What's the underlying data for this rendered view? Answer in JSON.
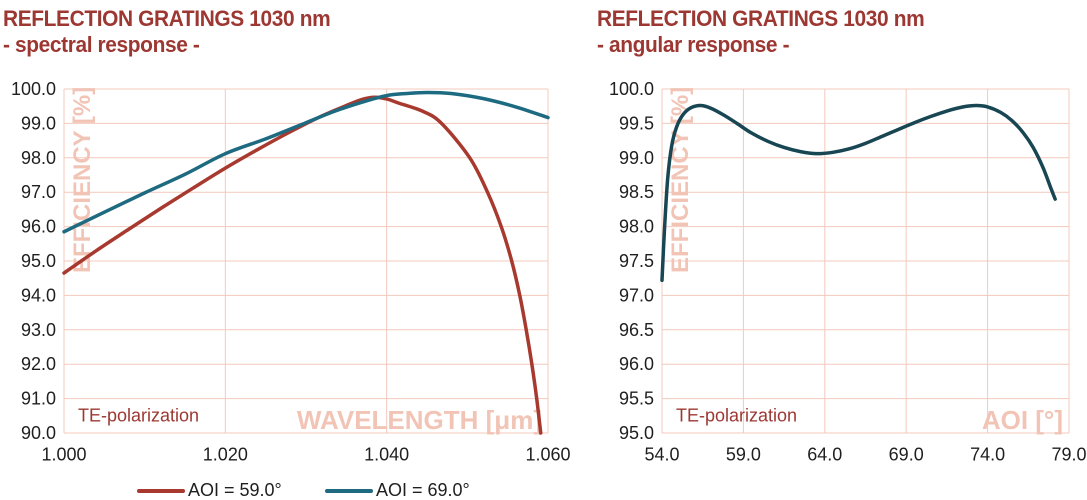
{
  "palette": {
    "title": "#9C3732",
    "text": "#1F1F1F",
    "grid": "#F3C9BC",
    "watermark": "#F1C4B6",
    "annotation": "#9C3732"
  },
  "legend": {
    "items": [
      {
        "label": "AOI = 59.0°",
        "color": "#A8392F"
      },
      {
        "label": "AOI = 69.0°",
        "color": "#1E6A80"
      }
    ]
  },
  "chart_data": [
    {
      "type": "line",
      "title": "REFLECTION GRATINGS 1030 nm",
      "subtitle": "- spectral response -",
      "xlabel": "WAVELENGTH [μm]",
      "ylabel": "EFFICIENCY [%]",
      "annotation": "TE-polarization",
      "xlim": [
        1.0,
        1.06
      ],
      "ylim": [
        90.0,
        100.0
      ],
      "xticks": [
        1.0,
        1.02,
        1.04,
        1.06
      ],
      "xtick_labels": [
        "1.000",
        "1.020",
        "1.040",
        "1.060"
      ],
      "yticks": [
        90,
        91,
        92,
        93,
        94,
        95,
        96,
        97,
        98,
        99,
        100
      ],
      "ytick_labels": [
        "90.0",
        "91.0",
        "92.0",
        "93.0",
        "94.0",
        "95.0",
        "96.0",
        "97.0",
        "98.0",
        "99.0",
        "100.0"
      ],
      "grid": true,
      "legend_position": "bottom",
      "series": [
        {
          "name": "AOI = 59.0°",
          "color": "#A8392F",
          "points": [
            [
              1.0,
              94.65
            ],
            [
              1.004,
              95.3
            ],
            [
              1.008,
              95.92
            ],
            [
              1.012,
              96.53
            ],
            [
              1.016,
              97.12
            ],
            [
              1.02,
              97.7
            ],
            [
              1.024,
              98.24
            ],
            [
              1.028,
              98.75
            ],
            [
              1.032,
              99.22
            ],
            [
              1.035,
              99.52
            ],
            [
              1.037,
              99.7
            ],
            [
              1.0385,
              99.76
            ],
            [
              1.04,
              99.71
            ],
            [
              1.0415,
              99.59
            ],
            [
              1.0445,
              99.35
            ],
            [
              1.0468,
              99.0
            ],
            [
              1.0503,
              98.0
            ],
            [
              1.0525,
              97.0
            ],
            [
              1.0542,
              96.0
            ],
            [
              1.0555,
              95.0
            ],
            [
              1.0565,
              94.0
            ],
            [
              1.0573,
              93.0
            ],
            [
              1.058,
              92.0
            ],
            [
              1.0586,
              91.0
            ],
            [
              1.0591,
              90.0
            ]
          ]
        },
        {
          "name": "AOI = 69.0°",
          "color": "#1E6A80",
          "points": [
            [
              1.0,
              95.85
            ],
            [
              1.005,
              96.42
            ],
            [
              1.01,
              96.98
            ],
            [
              1.015,
              97.52
            ],
            [
              1.02,
              98.12
            ],
            [
              1.025,
              98.55
            ],
            [
              1.03,
              99.02
            ],
            [
              1.0335,
              99.35
            ],
            [
              1.037,
              99.62
            ],
            [
              1.04,
              99.81
            ],
            [
              1.0425,
              99.87
            ],
            [
              1.045,
              99.9
            ],
            [
              1.048,
              99.87
            ],
            [
              1.052,
              99.72
            ],
            [
              1.056,
              99.48
            ],
            [
              1.06,
              99.17
            ]
          ]
        }
      ]
    },
    {
      "type": "line",
      "title": "REFLECTION GRATINGS 1030 nm",
      "subtitle": "- angular response -",
      "xlabel": "AOI [°]",
      "ylabel": "EFFICIENCY [%]",
      "annotation": "TE-polarization",
      "xlim": [
        54.0,
        79.0
      ],
      "ylim": [
        95.0,
        100.0
      ],
      "xticks": [
        54,
        59,
        64,
        69,
        74,
        79
      ],
      "xtick_labels": [
        "54.0",
        "59.0",
        "64.0",
        "69.0",
        "74.0",
        "79.0"
      ],
      "yticks": [
        95,
        95.5,
        96,
        96.5,
        97,
        97.5,
        98,
        98.5,
        99,
        99.5,
        100
      ],
      "ytick_labels": [
        "95.0",
        "95.5",
        "96.0",
        "96.5",
        "97.0",
        "97.5",
        "98.0",
        "98.5",
        "99.0",
        "99.5",
        "100.0"
      ],
      "grid": true,
      "legend_position": "none",
      "series": [
        {
          "name": "AOI = 69.0°",
          "color": "#184653",
          "points": [
            [
              54.0,
              97.22
            ],
            [
              54.15,
              97.95
            ],
            [
              54.35,
              98.7
            ],
            [
              54.6,
              99.18
            ],
            [
              54.9,
              99.45
            ],
            [
              55.3,
              99.63
            ],
            [
              55.8,
              99.73
            ],
            [
              56.4,
              99.76
            ],
            [
              57.0,
              99.72
            ],
            [
              57.8,
              99.62
            ],
            [
              58.6,
              99.5
            ],
            [
              59.5,
              99.36
            ],
            [
              60.5,
              99.24
            ],
            [
              61.5,
              99.15
            ],
            [
              62.5,
              99.09
            ],
            [
              63.5,
              99.06
            ],
            [
              64.5,
              99.08
            ],
            [
              65.5,
              99.13
            ],
            [
              66.5,
              99.21
            ],
            [
              67.5,
              99.31
            ],
            [
              68.5,
              99.41
            ],
            [
              69.5,
              99.51
            ],
            [
              70.5,
              99.6
            ],
            [
              71.5,
              99.68
            ],
            [
              72.5,
              99.74
            ],
            [
              73.3,
              99.76
            ],
            [
              74.0,
              99.74
            ],
            [
              74.8,
              99.66
            ],
            [
              75.5,
              99.54
            ],
            [
              76.2,
              99.36
            ],
            [
              76.8,
              99.15
            ],
            [
              77.4,
              98.86
            ],
            [
              77.9,
              98.55
            ],
            [
              78.15,
              98.4
            ]
          ]
        }
      ]
    }
  ]
}
